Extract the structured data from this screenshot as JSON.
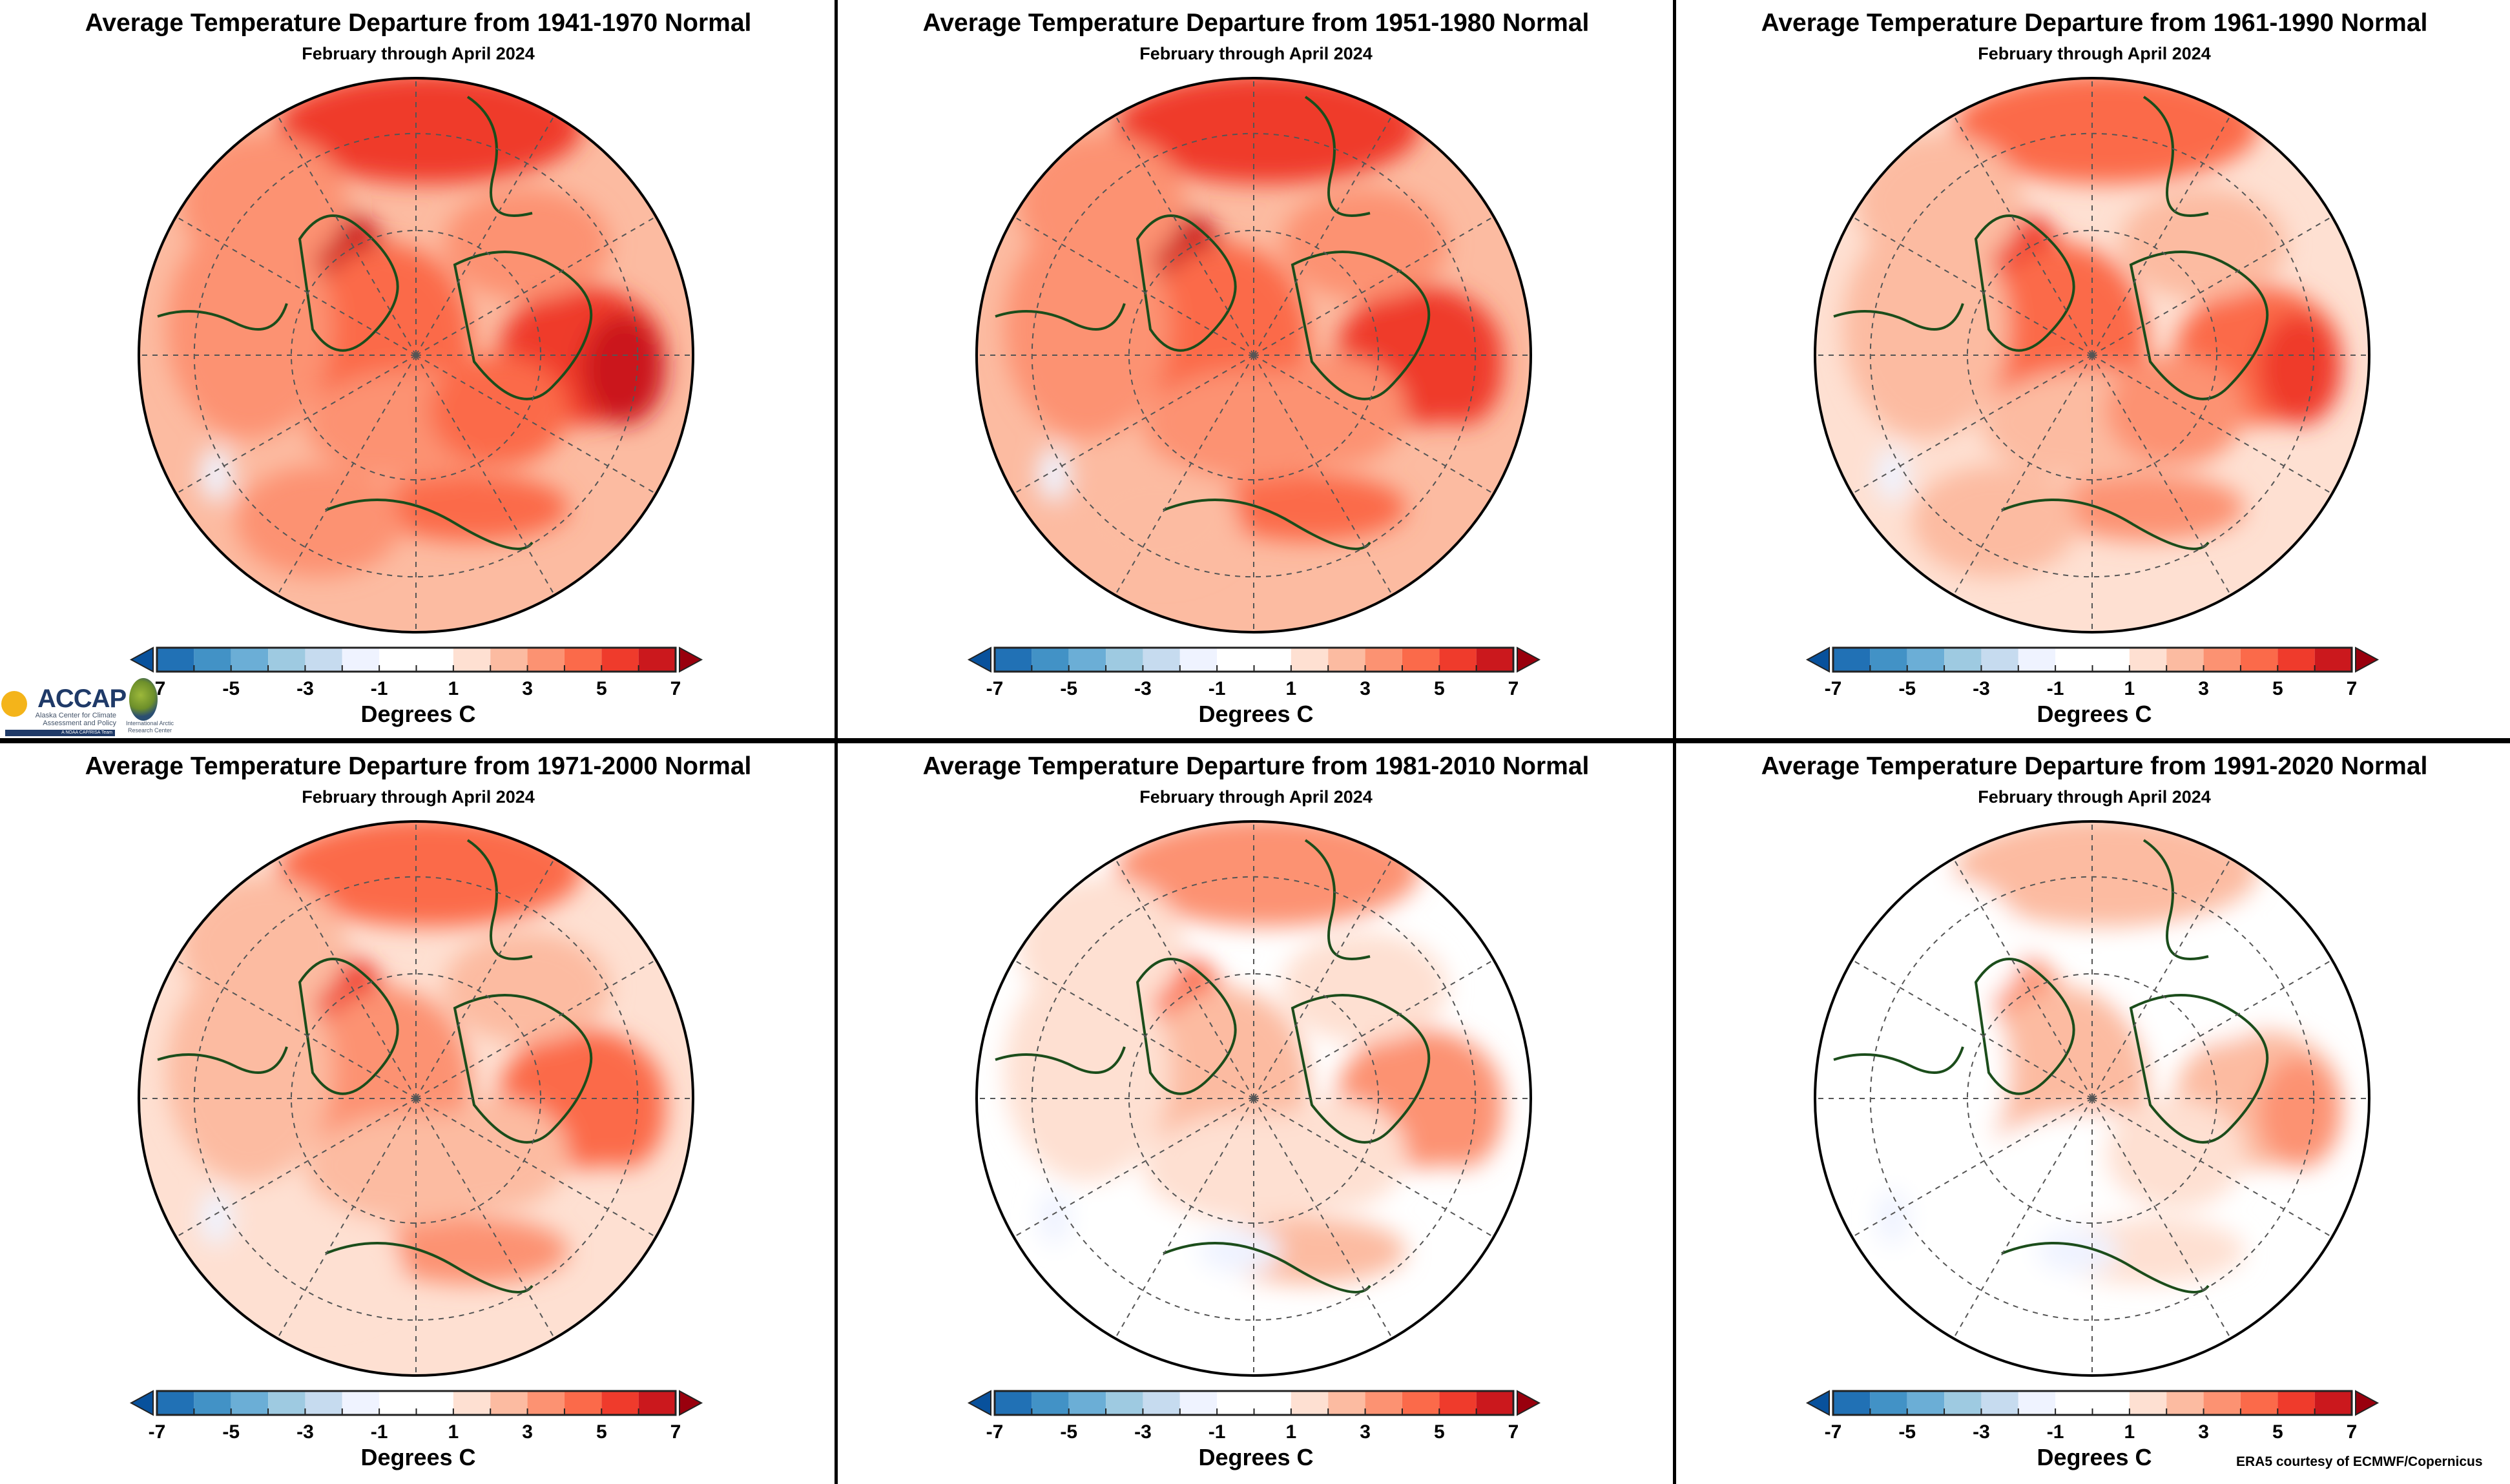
{
  "subtitle": "February through April 2024",
  "units_label": "Degrees C",
  "credit": "ERA5 courtesy of ECMWF/Copernicus",
  "logos": {
    "accap": "ACCAP",
    "accap_sub": "Alaska Center for Climate Assessment and Policy",
    "accap_tag": "A NOAA CAP/RISA Team",
    "iarc": "International Arctic Research Center"
  },
  "panels": [
    {
      "title": "Average Temperature Departure from 1941-1970 Normal"
    },
    {
      "title": "Average Temperature Departure from 1951-1980 Normal"
    },
    {
      "title": "Average Temperature Departure from 1961-1990 Normal"
    },
    {
      "title": "Average Temperature Departure from 1971-2000 Normal"
    },
    {
      "title": "Average Temperature Departure from 1981-2010 Normal"
    },
    {
      "title": "Average Temperature Departure from 1991-2020 Normal"
    }
  ],
  "colorbar": {
    "min": -7,
    "max": 7,
    "step": 1,
    "tick_labels": [
      "-7",
      "-5",
      "-3",
      "-1",
      "1",
      "3",
      "5",
      "7"
    ],
    "colors": [
      "#2171b5",
      "#4292c6",
      "#6baed6",
      "#9ecae1",
      "#c6dbef",
      "#eff3ff",
      "#ffffff",
      "#ffffff",
      "#fee0d2",
      "#fcbba1",
      "#fc9272",
      "#fb6a4a",
      "#ef3b2c",
      "#cb181d"
    ],
    "under_color": "#08519c",
    "over_color": "#99000d"
  }
}
